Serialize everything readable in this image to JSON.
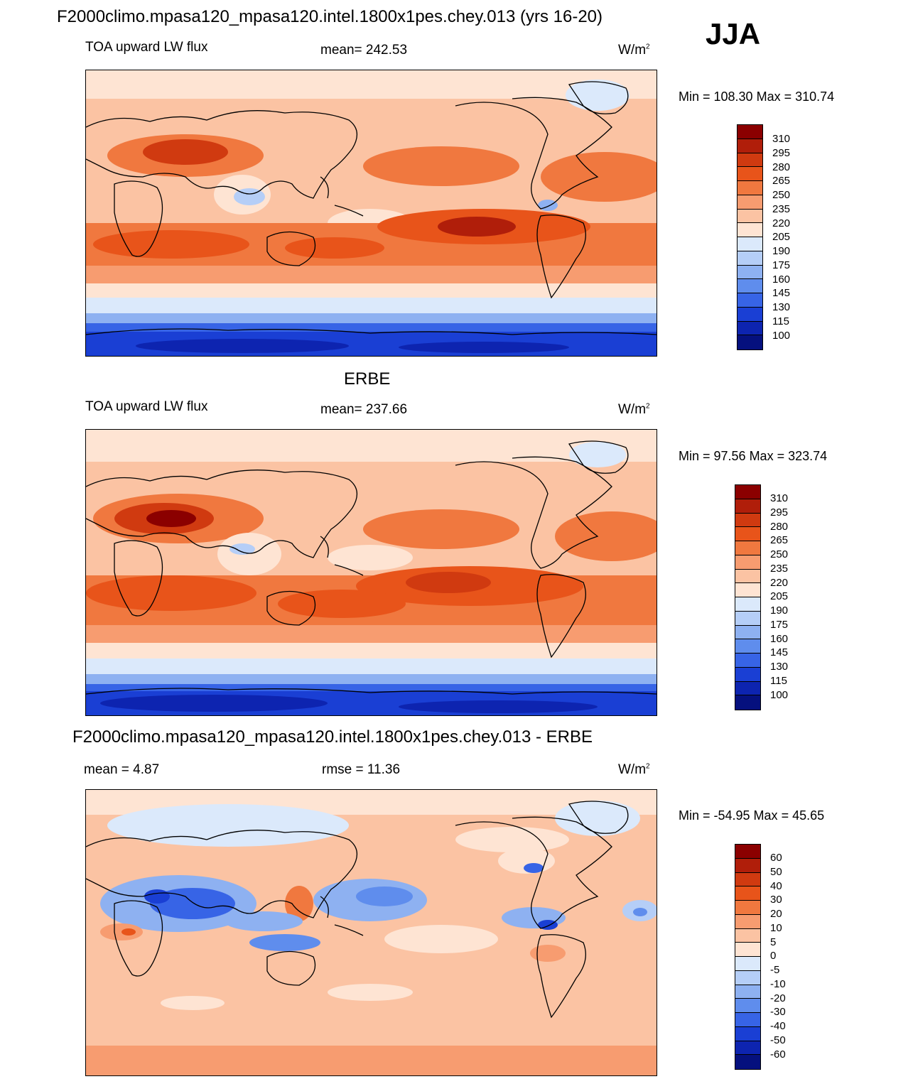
{
  "header": {
    "title": "F2000climo.mpasa120_mpasa120.intel.1800x1pes.chey.013 (yrs 16-20)",
    "season": "JJA"
  },
  "panels": [
    {
      "title": "",
      "left_label": "TOA upward LW flux",
      "center_label": "mean= 242.53",
      "units": "W/m",
      "units_sup": "2",
      "minmax": "Min = 108.30 Max = 310.74",
      "colorbar_labels": [
        "310",
        "295",
        "280",
        "265",
        "250",
        "235",
        "220",
        "205",
        "190",
        "175",
        "160",
        "145",
        "130",
        "115",
        "100"
      ]
    },
    {
      "title": "ERBE",
      "left_label": "TOA upward LW flux",
      "center_label": "mean= 237.66",
      "units": "W/m",
      "units_sup": "2",
      "minmax": "Min =  97.56 Max = 323.74",
      "colorbar_labels": [
        "310",
        "295",
        "280",
        "265",
        "250",
        "235",
        "220",
        "205",
        "190",
        "175",
        "160",
        "145",
        "130",
        "115",
        "100"
      ]
    },
    {
      "title": "F2000climo.mpasa120_mpasa120.intel.1800x1pes.chey.013 - ERBE",
      "left_label": "mean =   4.87",
      "center_label": "rmse =  11.36",
      "units": "W/m",
      "units_sup": "2",
      "minmax": "Min = -54.95 Max =  45.65",
      "colorbar_labels": [
        "60",
        "50",
        "40",
        "30",
        "20",
        "10",
        "5",
        "0",
        "-5",
        "-10",
        "-20",
        "-30",
        "-40",
        "-50",
        "-60"
      ]
    }
  ],
  "colors": {
    "levels": [
      "#8b0000",
      "#b01e0a",
      "#d03a10",
      "#e8541a",
      "#f0783f",
      "#f79c70",
      "#fbc3a3",
      "#fee4d3",
      "#dbe9fb",
      "#b5cef7",
      "#8eb1f1",
      "#5f8ded",
      "#3764e6",
      "#1a3fd4",
      "#0d24b0",
      "#05107e"
    ],
    "diff_levels": [
      "#8b0000",
      "#b01e0a",
      "#d03a10",
      "#e8541a",
      "#f0783f",
      "#f79c70",
      "#fbc3a3",
      "#fee4d3",
      "#dbe9fb",
      "#b5cef7",
      "#8eb1f1",
      "#5f8ded",
      "#3764e6",
      "#1a3fd4",
      "#0d24b0",
      "#05107e"
    ]
  }
}
